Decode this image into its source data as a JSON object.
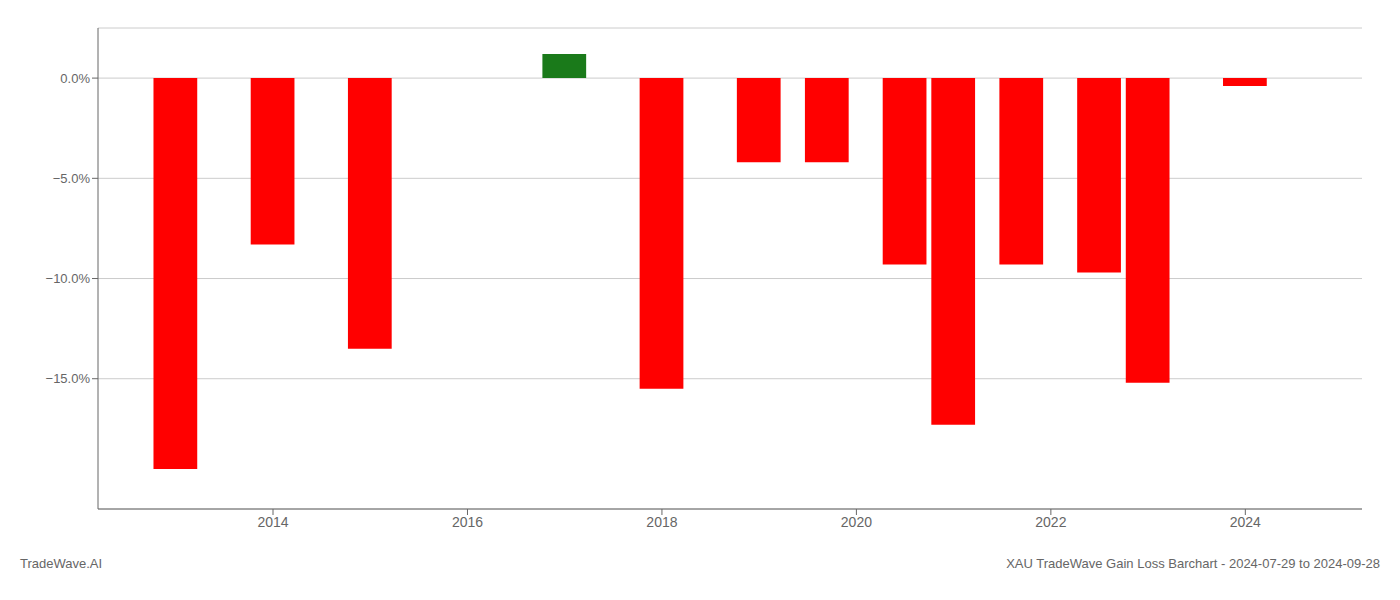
{
  "chart_data": {
    "type": "bar",
    "title": "XAU TradeWave Gain Loss Barchart - 2024-07-29 to 2024-09-28",
    "annotations": [
      "TradeWave.AI"
    ],
    "x": [
      2013,
      2014,
      2015,
      2017,
      2018,
      2019,
      2019.7,
      2020.5,
      2021,
      2021.7,
      2022.5,
      2023,
      2024
    ],
    "values": [
      -19.5,
      -8.3,
      -13.5,
      1.2,
      -15.5,
      -4.2,
      -4.2,
      -9.3,
      -17.3,
      -9.3,
      -9.7,
      -15.2,
      -0.4
    ],
    "colors": [
      "#ff0000",
      "#ff0000",
      "#ff0000",
      "#1a7a1a",
      "#ff0000",
      "#ff0000",
      "#ff0000",
      "#ff0000",
      "#ff0000",
      "#ff0000",
      "#ff0000",
      "#ff0000",
      "#ff0000"
    ],
    "xlim": [
      2012.2,
      2025.2
    ],
    "xticks": [
      2014,
      2016,
      2018,
      2020,
      2022,
      2024
    ],
    "ylim": [
      -21.5,
      2.5
    ],
    "yticks": [
      {
        "value": 0.0,
        "label": "0.0%"
      },
      {
        "value": -5.0,
        "label": "−5.0%"
      },
      {
        "value": -10.0,
        "label": "−10.0%"
      },
      {
        "value": -15.0,
        "label": "−15.0%"
      }
    ],
    "grid": true
  }
}
